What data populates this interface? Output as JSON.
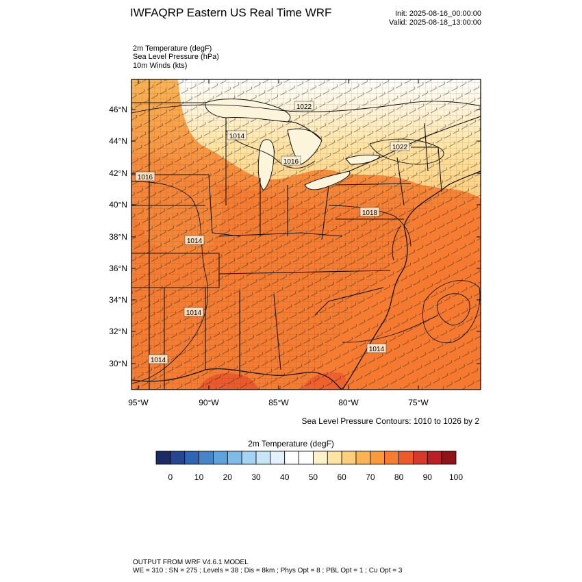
{
  "header": {
    "title": "IWFAQRP Eastern US Real Time WRF",
    "init": "Init: 2025-08-16_00:00:00",
    "valid": "Valid: 2025-08-18_13:00:00"
  },
  "fields": [
    "2m Temperature   (degF)",
    "Sea Level Pressure   (hPa)",
    "10m Winds   (kts)"
  ],
  "map": {
    "lat_ticks": [
      "46°N",
      "44°N",
      "42°N",
      "40°N",
      "38°N",
      "36°N",
      "34°N",
      "32°N",
      "30°N"
    ],
    "lon_ticks": [
      "95°W",
      "90°W",
      "85°W",
      "80°W",
      "75°W"
    ],
    "pressure_labels": [
      {
        "text": "1022",
        "region": "lake-superior"
      },
      {
        "text": "1014",
        "region": "minnesota-wisconsin"
      },
      {
        "text": "1016",
        "region": "lower-michigan"
      },
      {
        "text": "1022",
        "region": "new-york"
      },
      {
        "text": "1016",
        "region": "iowa"
      },
      {
        "text": "1018",
        "region": "pennsylvania"
      },
      {
        "text": "1014",
        "region": "missouri"
      },
      {
        "text": "1014",
        "region": "louisiana-north"
      },
      {
        "text": "1014",
        "region": "louisiana-coast"
      },
      {
        "text": "1014",
        "region": "atlantic-offshore"
      }
    ],
    "contour_note": "Sea Level Pressure Contours: 1010 to 1026 by 2"
  },
  "colorbar": {
    "title": "2m Temperature   (degF)",
    "colors": [
      "#1c2b63",
      "#25478f",
      "#2f66b3",
      "#4686c8",
      "#5ea3d9",
      "#7fbbe6",
      "#a5d3f1",
      "#c8e4f7",
      "#e3f1fb",
      "#ffffff",
      "#ffffff",
      "#fff1c9",
      "#fee4a3",
      "#fdce7c",
      "#fbb454",
      "#f99a3c",
      "#f67c31",
      "#ec5a2c",
      "#d63a2a",
      "#b91f25",
      "#8f1419"
    ],
    "tick_labels": [
      "0",
      "10",
      "20",
      "30",
      "40",
      "50",
      "60",
      "70",
      "80",
      "90",
      "100"
    ]
  },
  "footer": {
    "line1": "OUTPUT FROM WRF V4.6.1 MODEL",
    "line2": "WE = 310 ; SN = 275 ; Levels = 38 ; Dis = 8km ; Phys Opt = 8 ; PBL Opt = 1 ; Cu Opt = 3"
  }
}
